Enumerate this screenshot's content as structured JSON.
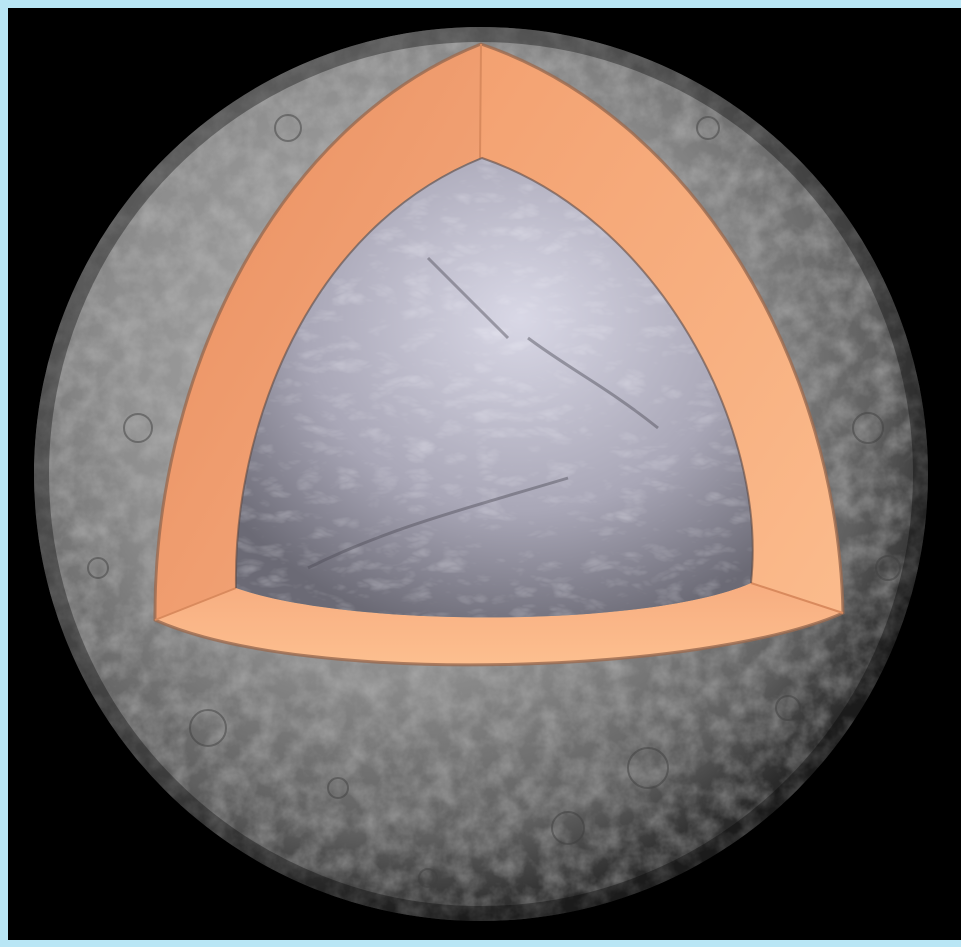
{
  "image": {
    "subject": "planet-cutaway",
    "colors": {
      "frame_border": "#b9e6f5",
      "background": "#000000",
      "crust_surface": "#8a8a8a",
      "mantle": "#f4a477",
      "core": "#b6b4c4"
    }
  }
}
